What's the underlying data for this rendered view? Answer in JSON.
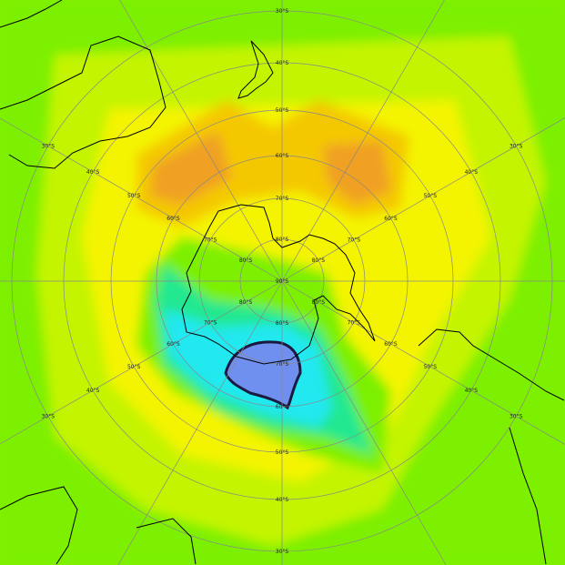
{
  "map": {
    "projection": "south polar stereographic",
    "colors": {
      "green": "#7cf000",
      "yellow_green": "#c4f400",
      "yellow": "#f4f400",
      "light_orange": "#f4c800",
      "orange": "#f0a020",
      "teal": "#20e890",
      "cyan": "#20e8f0",
      "blue": "#7090f0",
      "coastline": "#000000",
      "grid": "#888888"
    },
    "pole_label": "90°S",
    "latitude_labels": [
      "80°S",
      "70°S",
      "60°S",
      "50°S",
      "40°S",
      "30°S"
    ]
  }
}
